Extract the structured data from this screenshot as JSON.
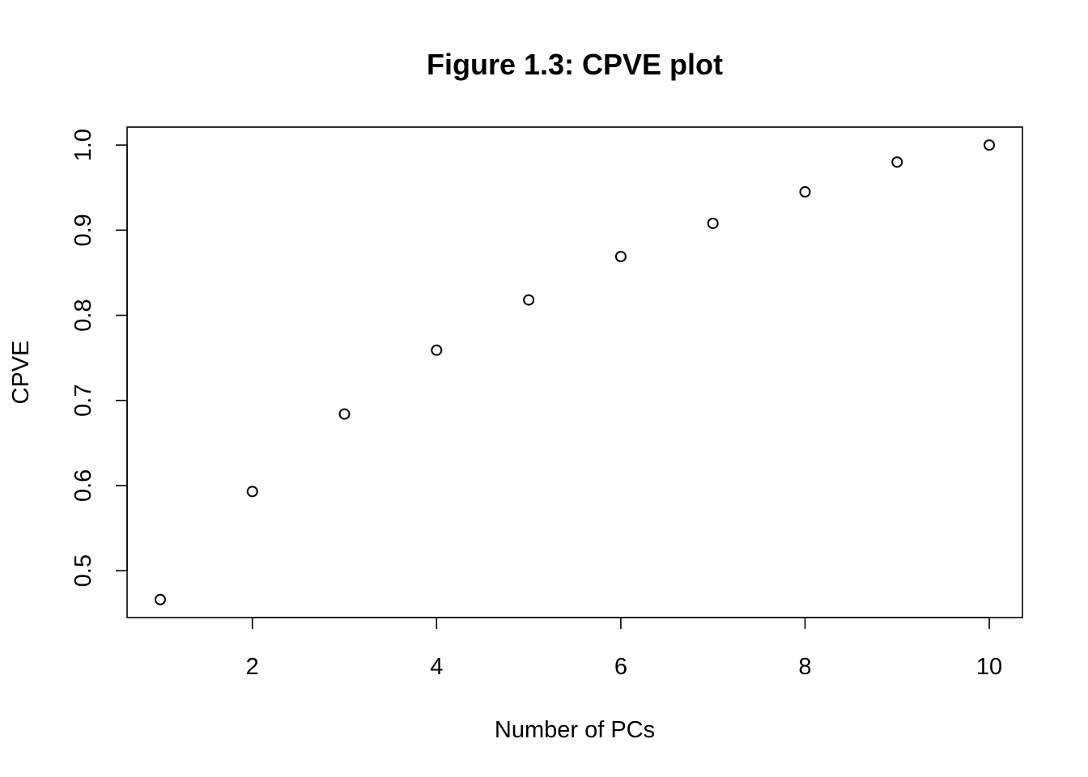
{
  "chart_data": {
    "type": "scatter",
    "title": "Figure 1.3: CPVE plot",
    "xlabel": "Number of PCs",
    "ylabel": "CPVE",
    "x": [
      1,
      2,
      3,
      4,
      5,
      6,
      7,
      8,
      9,
      10
    ],
    "y": [
      0.466,
      0.593,
      0.684,
      0.759,
      0.818,
      0.869,
      0.908,
      0.945,
      0.98,
      1.0
    ],
    "xticks": [
      2,
      4,
      6,
      8,
      10
    ],
    "xtick_labels": [
      "2",
      "4",
      "6",
      "8",
      "10"
    ],
    "yticks": [
      0.5,
      0.6,
      0.7,
      0.8,
      0.9,
      1.0
    ],
    "ytick_labels": [
      "0.5",
      "0.6",
      "0.7",
      "0.8",
      "0.9",
      "1.0"
    ],
    "xlim": [
      0.64,
      10.36
    ],
    "ylim": [
      0.4449,
      1.0211
    ],
    "grid": false,
    "marker": "open-circle",
    "colors": {
      "points": "#000000",
      "axes": "#000000",
      "background": "#ffffff"
    }
  }
}
